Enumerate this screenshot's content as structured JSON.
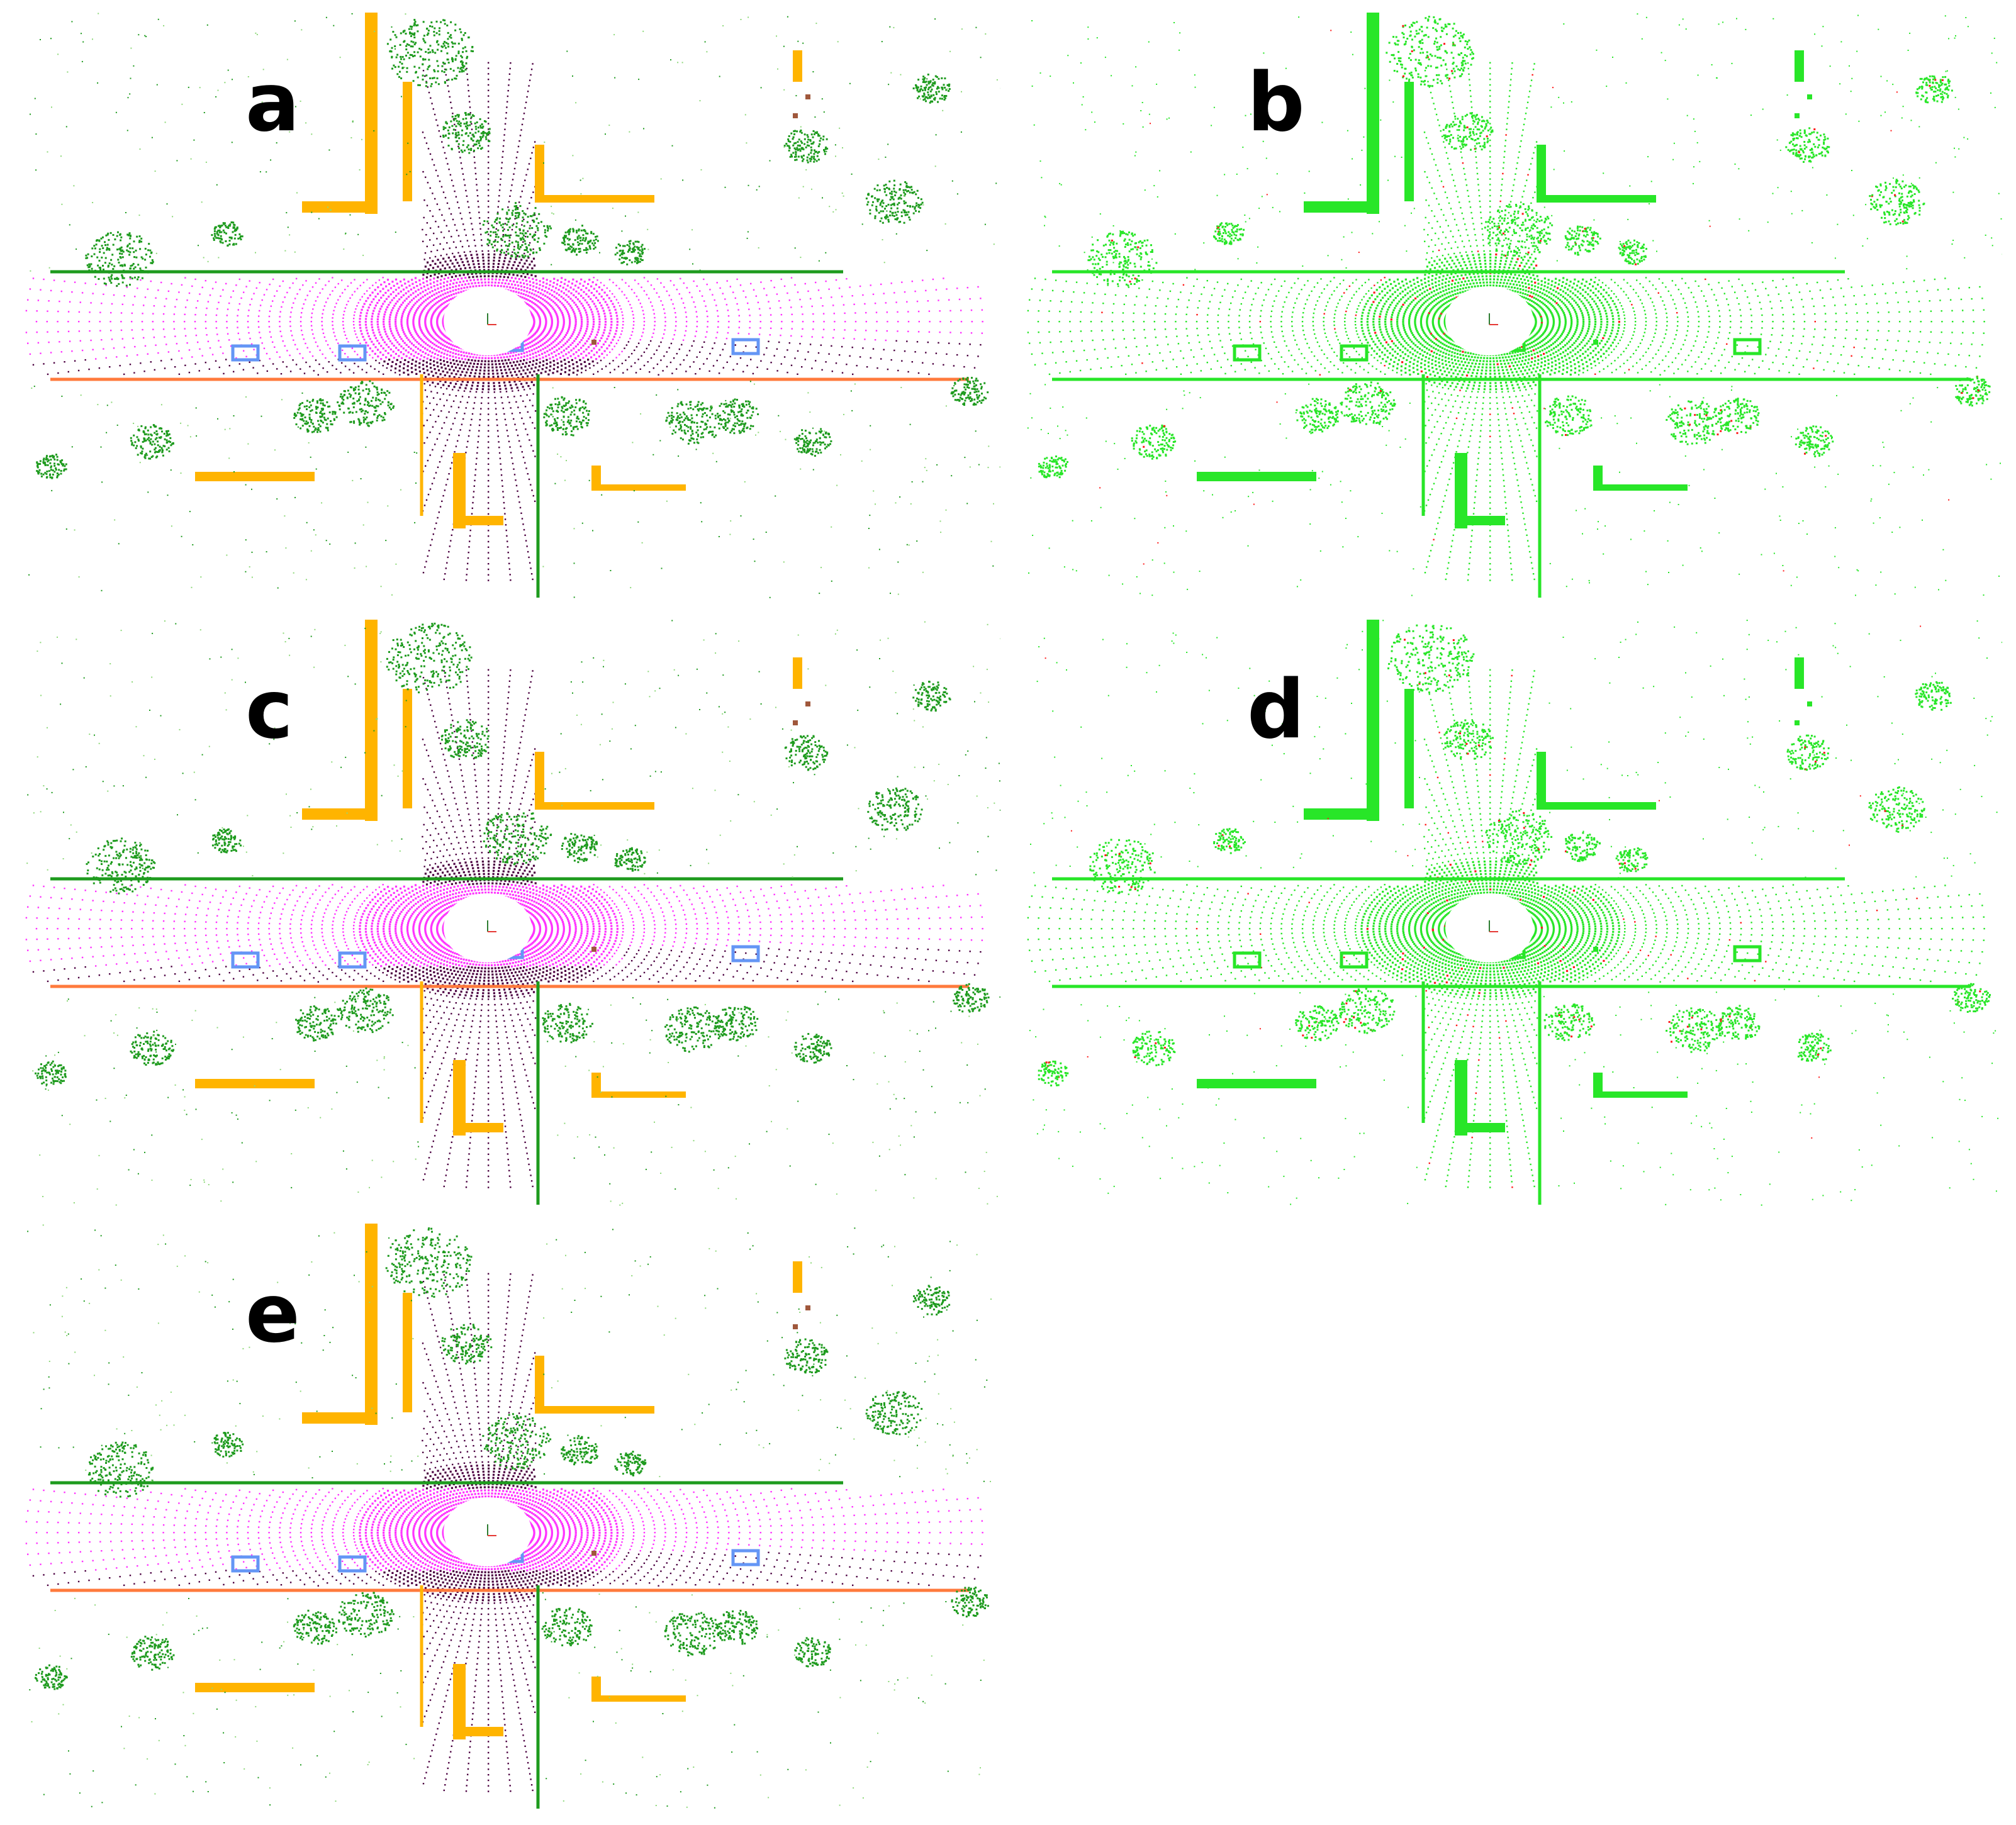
{
  "panels": [
    {
      "id": "a",
      "label": "a",
      "scheme": "semantic"
    },
    {
      "id": "b",
      "label": "b",
      "scheme": "error"
    },
    {
      "id": "c",
      "label": "c",
      "scheme": "semantic"
    },
    {
      "id": "d",
      "label": "d",
      "scheme": "error"
    },
    {
      "id": "e",
      "label": "e",
      "scheme": "semantic"
    }
  ],
  "colors": {
    "background": "#ffffff",
    "road": "#ff33ff",
    "sidewalk": "#4b0040",
    "building": "#ffb400",
    "vegetation": "#1e9b1e",
    "terrain": "#8ed87a",
    "car": "#6496f5",
    "trunk": "#a0583c",
    "pole": "#ff7a3c",
    "correct": "#28e628",
    "incorrect": "#ff1a1a"
  }
}
